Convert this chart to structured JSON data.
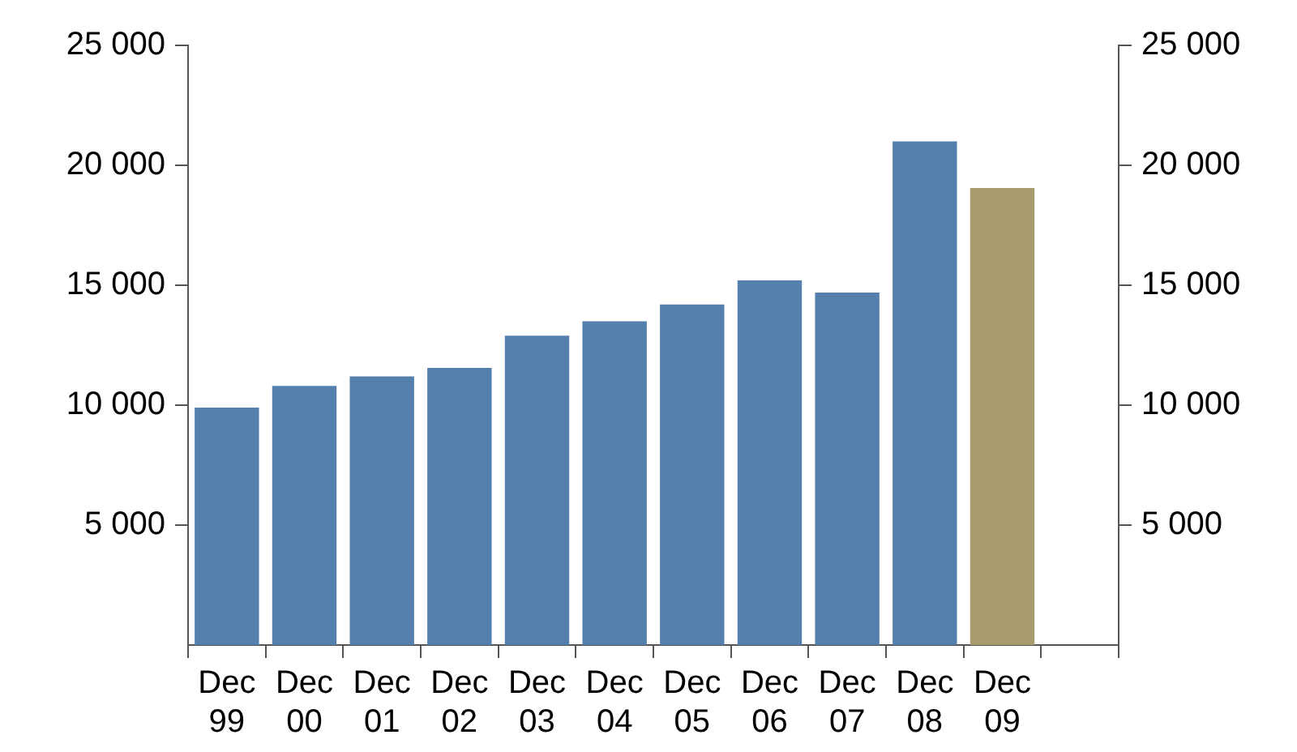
{
  "chart_data": {
    "type": "bar",
    "categories": [
      "Dec 99",
      "Dec 00",
      "Dec 01",
      "Dec 02",
      "Dec 03",
      "Dec 04",
      "Dec 05",
      "Dec 06",
      "Dec 07",
      "Dec 08",
      "Dec 09",
      null
    ],
    "values": [
      9900,
      10800,
      11200,
      11550,
      12900,
      13500,
      14200,
      15200,
      14700,
      21000,
      19050,
      null
    ],
    "colors": [
      "#5580ae",
      "#5580ae",
      "#5580ae",
      "#5580ae",
      "#5580ae",
      "#5580ae",
      "#5580ae",
      "#5580ae",
      "#5580ae",
      "#5580ae",
      "#a89c6e",
      "#5580ae"
    ],
    "ylim": [
      0,
      25000
    ],
    "yticks": [
      {
        "value": 5000,
        "label": "5 000"
      },
      {
        "value": 10000,
        "label": "10 000"
      },
      {
        "value": 15000,
        "label": "15 000"
      },
      {
        "value": 20000,
        "label": "20 000"
      },
      {
        "value": 25000,
        "label": "25 000"
      }
    ],
    "y2lim": [
      0,
      25000
    ],
    "y2ticks": [
      {
        "value": 5000,
        "label": "5 000"
      },
      {
        "value": 10000,
        "label": "10 000"
      },
      {
        "value": 15000,
        "label": "15 000"
      },
      {
        "value": 20000,
        "label": "20 000"
      },
      {
        "value": 25000,
        "label": "25 000"
      }
    ],
    "grid": false,
    "legend": false
  }
}
